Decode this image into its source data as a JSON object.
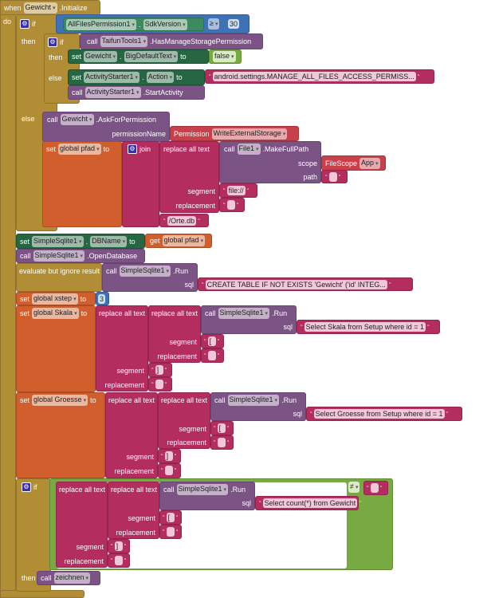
{
  "labels": {
    "when": "when",
    "do": "do",
    "if": "if",
    "then": "then",
    "else": "else",
    "set": "set",
    "to": "to",
    "call": "call",
    "get": "get",
    "dot": ".",
    "segment": "segment",
    "replacement": "replacement",
    "replace": "replace all text",
    "sql": "sql",
    "run": ".Run",
    "join": "join",
    "evaluate": "evaluate but ignore result",
    "scope": "scope",
    "path": "path",
    "permissionName": "permissionName"
  },
  "event": {
    "component": "Gewicht",
    "name": ".Initialize"
  },
  "if1": {
    "component": "AllFilesPermission1",
    "property": "SdkVersion",
    "operator": "≥",
    "value": "30"
  },
  "if2": {
    "component": "TaifunTools1",
    "method": ".HasManageStoragePermission"
  },
  "set1": {
    "component": "Gewicht",
    "property": "BigDefaultText",
    "value": "false"
  },
  "set2": {
    "component": "ActivityStarter1",
    "property": "Action",
    "value": "android.settings.MANAGE_ALL_FILES_ACCESS_PERMISS..."
  },
  "call1": {
    "component": "ActivityStarter1",
    "method": ".StartActivity"
  },
  "ask": {
    "component": "Gewicht",
    "method": ".AskForPermission",
    "permission_label": "Permission",
    "permission": "WriteExternalStorage"
  },
  "pfad": {
    "variable": "global pfad",
    "component": "File1",
    "method": ".MakeFullPath",
    "scope_label": "FileScope",
    "scope": "App",
    "path": "",
    "segment": "file://",
    "replacement": "",
    "tail": "/Orte.db"
  },
  "db": {
    "component": "SimpleSqlite1",
    "property": "DBName",
    "get_var": "global pfad",
    "open_method": ".OpenDatabase"
  },
  "create": {
    "component": "SimpleSqlite1",
    "sql": "CREATE TABLE IF NOT EXISTS 'Gewicht' ('id' INTEG..."
  },
  "xstep": {
    "variable": "global xstep",
    "value": "3"
  },
  "skala": {
    "variable": "global Skala",
    "component": "SimpleSqlite1",
    "sql": "Select Skala from Setup where id = 1",
    "seg1": "[",
    "rep1": "",
    "seg2": "]",
    "rep2": ""
  },
  "groesse": {
    "variable": "global Groesse",
    "component": "SimpleSqlite1",
    "sql": "Select Groesse from Setup where id = 1",
    "seg1": "[",
    "rep1": "",
    "seg2": "]",
    "rep2": ""
  },
  "if3": {
    "component": "SimpleSqlite1",
    "sql": "Select count(*) from Gewicht",
    "seg1": "[",
    "rep1": "",
    "seg2": "]",
    "rep2": "",
    "operator": "≠",
    "compare": ""
  },
  "zeichnen": {
    "procedure": "zeichnen"
  }
}
